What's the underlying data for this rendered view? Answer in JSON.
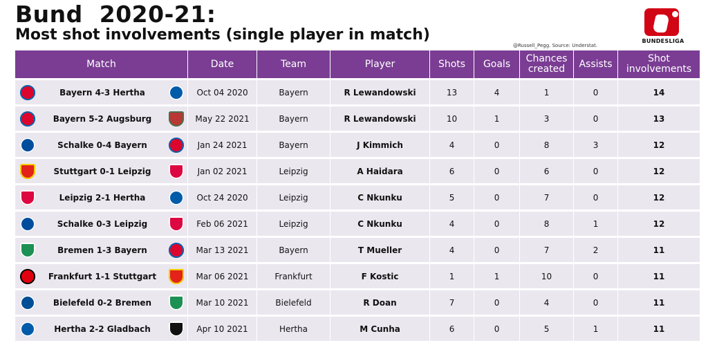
{
  "title": "Bund  2020-21:",
  "subtitle": "Most shot involvements (single player in match)",
  "credit": "@Russell_Pegg. Source: Understat.",
  "logo_text": "BUNDESLIGA",
  "colors": {
    "header_bg": "#7a3d93",
    "row_bg": "#ebe7ef",
    "logo_red": "#d20515"
  },
  "columns": [
    "Match",
    "Date",
    "Team",
    "Player",
    "Shots",
    "Goals",
    "Chances created",
    "Assists",
    "Shot involvements"
  ],
  "crests": {
    "bayern": {
      "icon": "bayern-crest-icon",
      "color": "#dc052d",
      "ring": "#0066b2"
    },
    "hertha": {
      "icon": "hertha-crest-icon",
      "color": "#005ca9",
      "ring": "#ffffff"
    },
    "augsburg": {
      "icon": "augsburg-crest-icon",
      "color": "#ba3733",
      "ring": "#46714d"
    },
    "schalke": {
      "icon": "schalke-crest-icon",
      "color": "#004d9d",
      "ring": "#ffffff"
    },
    "stuttgart": {
      "icon": "stuttgart-crest-icon",
      "color": "#e32219",
      "ring": "#f3d100"
    },
    "leipzig": {
      "icon": "leipzig-crest-icon",
      "color": "#dd0741",
      "ring": "#ffffff"
    },
    "bremen": {
      "icon": "bremen-crest-icon",
      "color": "#1d9053",
      "ring": "#ffffff"
    },
    "frankfurt": {
      "icon": "frankfurt-crest-icon",
      "color": "#e1000f",
      "ring": "#000000"
    },
    "bielefeld": {
      "icon": "bielefeld-crest-icon",
      "color": "#004e95",
      "ring": "#ffffff"
    },
    "gladbach": {
      "icon": "gladbach-crest-icon",
      "color": "#111111",
      "ring": "#ffffff"
    }
  },
  "rows": [
    {
      "home": "bayern",
      "match": "Bayern 4-3 Hertha",
      "away": "hertha",
      "date": "Oct 04 2020",
      "team": "Bayern",
      "player": "R Lewandowski",
      "shots": "13",
      "goals": "4",
      "chances": "1",
      "assists": "0",
      "total": "14"
    },
    {
      "home": "bayern",
      "match": "Bayern 5-2 Augsburg",
      "away": "augsburg",
      "date": "May 22 2021",
      "team": "Bayern",
      "player": "R Lewandowski",
      "shots": "10",
      "goals": "1",
      "chances": "3",
      "assists": "0",
      "total": "13"
    },
    {
      "home": "schalke",
      "match": "Schalke 0-4 Bayern",
      "away": "bayern",
      "date": "Jan 24 2021",
      "team": "Bayern",
      "player": "J Kimmich",
      "shots": "4",
      "goals": "0",
      "chances": "8",
      "assists": "3",
      "total": "12"
    },
    {
      "home": "stuttgart",
      "match": "Stuttgart 0-1 Leipzig",
      "away": "leipzig",
      "date": "Jan 02 2021",
      "team": "Leipzig",
      "player": "A Haidara",
      "shots": "6",
      "goals": "0",
      "chances": "6",
      "assists": "0",
      "total": "12"
    },
    {
      "home": "leipzig",
      "match": "Leipzig 2-1 Hertha",
      "away": "hertha",
      "date": "Oct 24 2020",
      "team": "Leipzig",
      "player": "C Nkunku",
      "shots": "5",
      "goals": "0",
      "chances": "7",
      "assists": "0",
      "total": "12"
    },
    {
      "home": "schalke",
      "match": "Schalke 0-3 Leipzig",
      "away": "leipzig",
      "date": "Feb 06 2021",
      "team": "Leipzig",
      "player": "C Nkunku",
      "shots": "4",
      "goals": "0",
      "chances": "8",
      "assists": "1",
      "total": "12"
    },
    {
      "home": "bremen",
      "match": "Bremen 1-3 Bayern",
      "away": "bayern",
      "date": "Mar 13 2021",
      "team": "Bayern",
      "player": "T Mueller",
      "shots": "4",
      "goals": "0",
      "chances": "7",
      "assists": "2",
      "total": "11"
    },
    {
      "home": "frankfurt",
      "match": "Frankfurt 1-1 Stuttgart",
      "away": "stuttgart",
      "date": "Mar 06 2021",
      "team": "Frankfurt",
      "player": "F Kostic",
      "shots": "1",
      "goals": "1",
      "chances": "10",
      "assists": "0",
      "total": "11"
    },
    {
      "home": "bielefeld",
      "match": "Bielefeld 0-2 Bremen",
      "away": "bremen",
      "date": "Mar 10 2021",
      "team": "Bielefeld",
      "player": "R Doan",
      "shots": "7",
      "goals": "0",
      "chances": "4",
      "assists": "0",
      "total": "11"
    },
    {
      "home": "hertha",
      "match": "Hertha 2-2 Gladbach",
      "away": "gladbach",
      "date": "Apr 10 2021",
      "team": "Hertha",
      "player": "M Cunha",
      "shots": "6",
      "goals": "0",
      "chances": "5",
      "assists": "1",
      "total": "11"
    }
  ]
}
